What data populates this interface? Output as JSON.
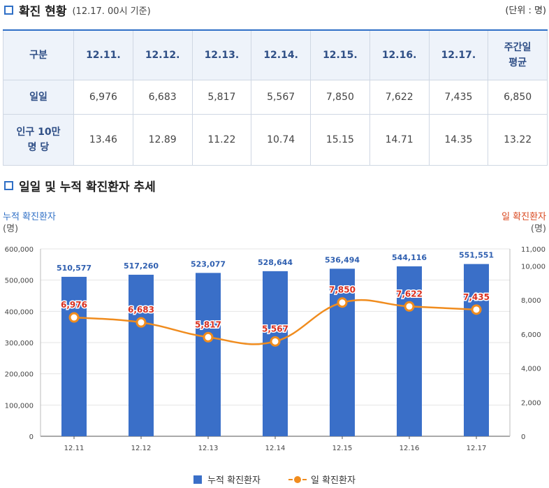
{
  "section1": {
    "title": "확진 현황",
    "subtitle": "(12.17. 00시 기준)",
    "unit": "(단위 : 명)"
  },
  "table": {
    "header": [
      "구분",
      "12.11.",
      "12.12.",
      "12.13.",
      "12.14.",
      "12.15.",
      "12.16.",
      "12.17.",
      "주간일\n평균"
    ],
    "rows": [
      {
        "label": "일일",
        "values": [
          "6,976",
          "6,683",
          "5,817",
          "5,567",
          "7,850",
          "7,622",
          "7,435",
          "6,850"
        ]
      },
      {
        "label": "인구 10만\n명 당",
        "values": [
          "13.46",
          "12.89",
          "11.22",
          "10.74",
          "15.15",
          "14.71",
          "14.35",
          "13.22"
        ]
      }
    ]
  },
  "section2": {
    "title": "일일 및 누적 확진환자 추세"
  },
  "axis_labels": {
    "left": "누적 확진환자",
    "left_unit": "(명)",
    "right": "일 확진환자",
    "right_unit": "(명)"
  },
  "legend": {
    "bar": "누적 확진환자",
    "line": "일 확진환자"
  },
  "colors": {
    "bar": "#3a6fc8",
    "line": "#f08c1e",
    "label_red": "#d9301f",
    "accent": "#2f6fc6"
  },
  "chart_data": {
    "type": "bar+line",
    "categories": [
      "12.11",
      "12.12",
      "12.13",
      "12.14",
      "12.15",
      "12.16",
      "12.17"
    ],
    "series": [
      {
        "name": "누적 확진환자",
        "type": "bar",
        "axis": "left",
        "values": [
          510577,
          517260,
          523077,
          528644,
          536494,
          544116,
          551551
        ],
        "labels": [
          "510,577",
          "517,260",
          "523,077",
          "528,644",
          "536,494",
          "544,116",
          "551,551"
        ]
      },
      {
        "name": "일 확진환자",
        "type": "line",
        "axis": "right",
        "values": [
          6976,
          6683,
          5817,
          5567,
          7850,
          7622,
          7435
        ],
        "labels": [
          "6,976",
          "6,683",
          "5,817",
          "5,567",
          "7,850",
          "7,622",
          "7,435"
        ]
      }
    ],
    "y_left": {
      "min": 0,
      "max": 600000,
      "ticks": [
        0,
        100000,
        200000,
        300000,
        400000,
        500000,
        600000
      ],
      "tick_labels": [
        "0",
        "100,000",
        "200,000",
        "300,000",
        "400,000",
        "500,000",
        "600,000"
      ]
    },
    "y_right": {
      "min": 0,
      "max": 11000,
      "ticks": [
        0,
        2000,
        4000,
        6000,
        8000,
        10000,
        11000
      ],
      "tick_labels": [
        "0",
        "2,000",
        "4,000",
        "6,000",
        "8,000",
        "10,000",
        "11,000"
      ]
    },
    "grid": "horizontal",
    "legend_position": "bottom"
  }
}
